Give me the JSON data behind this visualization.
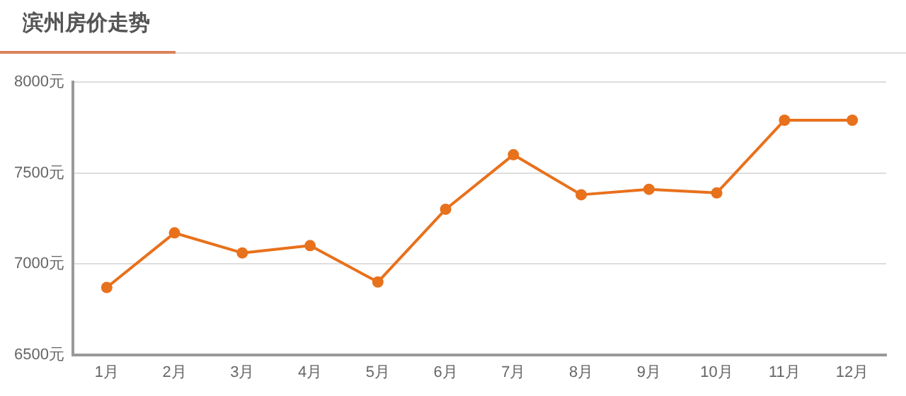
{
  "chart_data": {
    "type": "line",
    "title": "滨州房价走势",
    "categories": [
      "1月",
      "2月",
      "3月",
      "4月",
      "5月",
      "6月",
      "7月",
      "8月",
      "9月",
      "10月",
      "11月",
      "12月"
    ],
    "series": [
      {
        "color": "#e8711c",
        "values": [
          6870,
          7170,
          7060,
          7100,
          6900,
          7300,
          7600,
          7380,
          7410,
          7390,
          7790,
          7790
        ]
      }
    ],
    "ylim": [
      6500,
      8000
    ],
    "yticks": [
      {
        "value": 6500,
        "label": "6500元"
      },
      {
        "value": 7000,
        "label": "7000元"
      },
      {
        "value": 7500,
        "label": "7500元"
      },
      {
        "value": 8000,
        "label": "8000元"
      }
    ],
    "grid": "y",
    "legend": false,
    "marker": "circle",
    "line_style": "solid"
  }
}
